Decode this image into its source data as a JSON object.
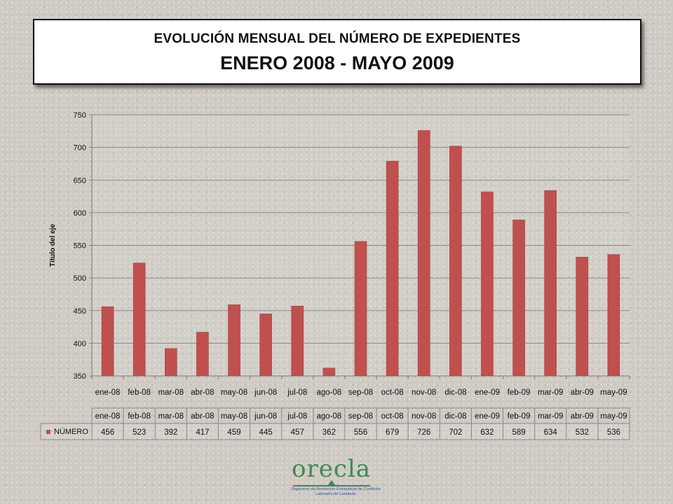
{
  "title": {
    "line1": "EVOLUCIÓN MENSUAL DEL NÚMERO DE EXPEDIENTES",
    "line2": "ENERO 2008 - MAYO 2009"
  },
  "chart_data": {
    "type": "bar",
    "categories": [
      "ene-08",
      "feb-08",
      "mar-08",
      "abr-08",
      "may-08",
      "jun-08",
      "jul-08",
      "ago-08",
      "sep-08",
      "oct-08",
      "nov-08",
      "dic-08",
      "ene-09",
      "feb-09",
      "mar-09",
      "abr-09",
      "may-09"
    ],
    "series": [
      {
        "name": "NÚMERO",
        "values": [
          456,
          523,
          392,
          417,
          459,
          445,
          457,
          362,
          556,
          679,
          726,
          702,
          632,
          589,
          634,
          532,
          536
        ],
        "color": "#c0504d"
      }
    ],
    "ylabel": "Título del eje",
    "ylim": [
      350,
      750
    ],
    "yticks": [
      350,
      400,
      450,
      500,
      550,
      600,
      650,
      700,
      750
    ],
    "grid": true,
    "data_table": true
  },
  "logo": {
    "word": "orecla",
    "subtitle": "Organismo de Resolución Extrajudicial de Conflictos Laborales de Cantabria"
  }
}
